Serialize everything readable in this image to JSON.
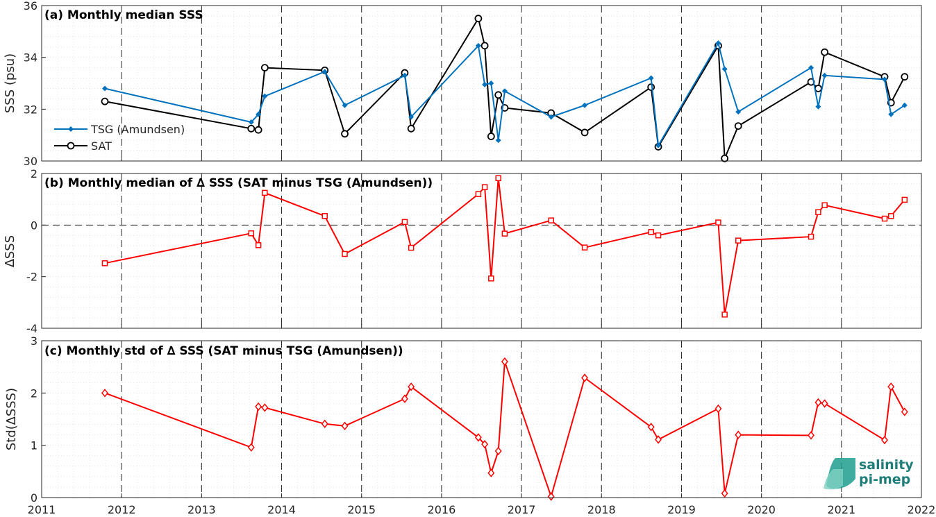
{
  "colors": {
    "tsg": "#0072BD",
    "sat": "#000000",
    "delta": "#FF0000",
    "logo": "#1f9e8e"
  },
  "logo": {
    "line1": "salinity",
    "line2": "pi-mep"
  },
  "x_ticks": [
    "2011",
    "2012",
    "2013",
    "2014",
    "2015",
    "2016",
    "2017",
    "2018",
    "2019",
    "2020",
    "2021",
    "2022"
  ],
  "chart_data": [
    {
      "type": "line",
      "title": "(a) Monthly median SSS",
      "xlabel": "",
      "ylabel": "SSS (psu)",
      "xlim": [
        2011,
        2022
      ],
      "ylim": [
        30,
        36
      ],
      "y_ticks": [
        "30",
        "32",
        "34",
        "36"
      ],
      "grid": true,
      "legend_position": "lower-left",
      "series": [
        {
          "name": "TSG (Amundsen)",
          "marker": "diamond",
          "x": [
            2011.79,
            2013.62,
            2013.71,
            2013.79,
            2014.54,
            2014.79,
            2015.54,
            2015.62,
            2016.46,
            2016.54,
            2016.62,
            2016.71,
            2016.79,
            2017.37,
            2017.79,
            2018.62,
            2018.71,
            2019.46,
            2019.54,
            2019.71,
            2020.62,
            2020.71,
            2020.79,
            2021.54,
            2021.62,
            2021.79
          ],
          "y": [
            32.8,
            31.5,
            31.8,
            32.5,
            33.45,
            32.15,
            33.3,
            31.7,
            34.45,
            32.95,
            33.0,
            30.8,
            32.7,
            31.7,
            32.15,
            33.2,
            30.6,
            34.55,
            33.55,
            31.9,
            33.6,
            32.1,
            33.3,
            33.15,
            31.8,
            32.15
          ]
        },
        {
          "name": "SAT",
          "marker": "circle",
          "x": [
            2011.79,
            2013.62,
            2013.71,
            2013.79,
            2014.54,
            2014.79,
            2015.54,
            2015.62,
            2016.46,
            2016.54,
            2016.62,
            2016.71,
            2016.79,
            2017.37,
            2017.79,
            2018.62,
            2018.71,
            2019.46,
            2019.54,
            2019.71,
            2020.62,
            2020.71,
            2020.79,
            2021.54,
            2021.62,
            2021.79
          ],
          "y": [
            32.3,
            31.25,
            31.2,
            33.6,
            33.5,
            31.05,
            33.4,
            31.25,
            35.5,
            34.45,
            30.95,
            32.55,
            32.05,
            31.85,
            31.1,
            32.85,
            30.55,
            34.45,
            30.1,
            31.35,
            33.05,
            32.8,
            34.2,
            33.25,
            32.25,
            33.25
          ]
        }
      ]
    },
    {
      "type": "line",
      "title": "(b) Monthly median of ∆ SSS (SAT minus TSG (Amundsen))",
      "xlabel": "",
      "ylabel": "∆SSS",
      "xlim": [
        2011,
        2022
      ],
      "ylim": [
        -4,
        2
      ],
      "y_ticks": [
        "-4",
        "-2",
        "0",
        "2"
      ],
      "grid": true,
      "zero_line": true,
      "series": [
        {
          "marker": "square",
          "x": [
            2011.79,
            2013.62,
            2013.71,
            2013.79,
            2014.54,
            2014.79,
            2015.54,
            2015.62,
            2016.46,
            2016.54,
            2016.62,
            2016.71,
            2016.79,
            2017.37,
            2017.79,
            2018.62,
            2018.71,
            2019.46,
            2019.54,
            2019.71,
            2020.62,
            2020.71,
            2020.79,
            2021.54,
            2021.62,
            2021.79
          ],
          "y": [
            -1.48,
            -0.32,
            -0.78,
            1.25,
            0.35,
            -1.12,
            0.12,
            -0.88,
            1.2,
            1.47,
            -2.07,
            1.82,
            -0.33,
            0.18,
            -0.87,
            -0.27,
            -0.4,
            0.1,
            -3.47,
            -0.6,
            -0.45,
            0.5,
            0.77,
            0.25,
            0.35,
            0.98
          ]
        }
      ]
    },
    {
      "type": "line",
      "title": "(c) Monthly std of ∆ SSS (SAT minus TSG (Amundsen))",
      "xlabel": "",
      "ylabel": "Std(∆SSS)",
      "xlim": [
        2011,
        2022
      ],
      "ylim": [
        0,
        3
      ],
      "y_ticks": [
        "0",
        "1",
        "2",
        "3"
      ],
      "grid": true,
      "series": [
        {
          "marker": "diamond",
          "x": [
            2011.79,
            2013.62,
            2013.71,
            2013.79,
            2014.54,
            2014.79,
            2015.54,
            2015.62,
            2016.46,
            2016.54,
            2016.62,
            2016.71,
            2016.79,
            2017.37,
            2017.79,
            2018.62,
            2018.71,
            2019.46,
            2019.54,
            2019.71,
            2020.62,
            2020.71,
            2020.79,
            2021.54,
            2021.62,
            2021.79
          ],
          "y": [
            2.0,
            0.96,
            1.74,
            1.72,
            1.41,
            1.37,
            1.89,
            2.12,
            1.15,
            1.02,
            0.47,
            0.89,
            2.6,
            0.02,
            2.29,
            1.35,
            1.11,
            1.7,
            0.08,
            1.2,
            1.19,
            1.82,
            1.8,
            1.1,
            2.12,
            1.64
          ]
        }
      ]
    }
  ]
}
